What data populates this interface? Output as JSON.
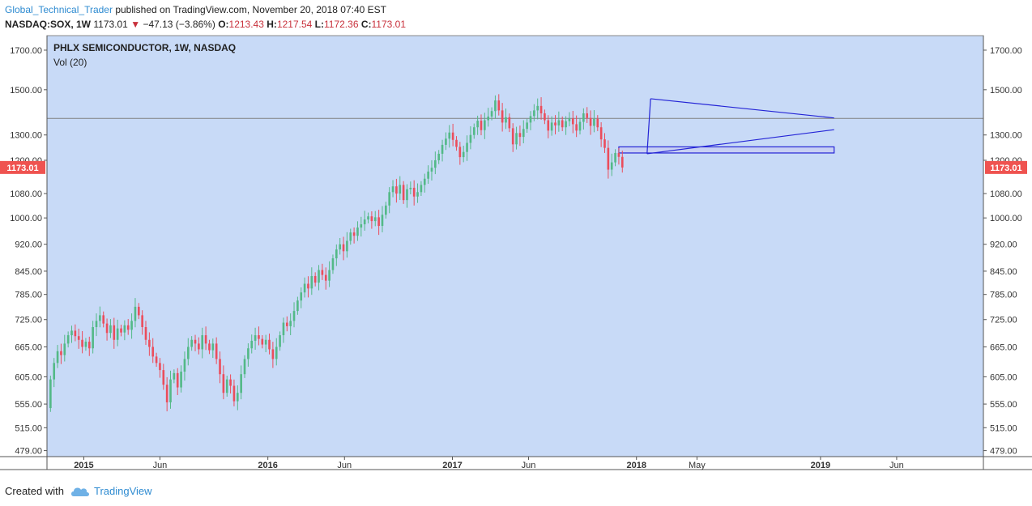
{
  "header": {
    "author": "Global_Technical_Trader",
    "published_text": "published on TradingView.com, November 20, 2018 07:40 EST",
    "symbol": "NASDAQ:SOX, 1W",
    "last": "1173.01",
    "change": "−47.13 (−3.86%)",
    "open_label": "O:",
    "open": "1213.43",
    "high_label": "H:",
    "high": "1217.54",
    "low_label": "L:",
    "low": "1172.36",
    "close_label": "C:",
    "close": "1173.01"
  },
  "footer": {
    "created_with": "Created with",
    "brand": "TradingView"
  },
  "colors": {
    "plot_bg": "#c8daf7",
    "up": "#53b987",
    "down": "#eb4d5c",
    "drawing": "#2424d6",
    "price_tag": "#ef5350",
    "hline": "#808080"
  },
  "chart_data": {
    "type": "candlestick",
    "title": "PHLX SEMICONDUCTOR, 1W, NASDAQ",
    "subtitle": "Vol (20)",
    "y_ticks": [
      1700,
      1500,
      1300,
      1200,
      1080,
      1000,
      920,
      845,
      785,
      725,
      665,
      605,
      555,
      515,
      479
    ],
    "y_tick_labels": [
      "1700.00",
      "1500.00",
      "1300.00",
      "1200.00",
      "1080.00",
      "1000.00",
      "920.00",
      "845.00",
      "785.00",
      "725.00",
      "665.00",
      "605.00",
      "555.00",
      "515.00",
      "479.00"
    ],
    "y_scale": "log",
    "ylim": [
      470,
      1780
    ],
    "x_ticks": [
      {
        "date": "2015-01-01",
        "label": "2015",
        "bold": true
      },
      {
        "date": "2015-06-01",
        "label": "Jun",
        "bold": false
      },
      {
        "date": "2016-01-01",
        "label": "2016",
        "bold": true
      },
      {
        "date": "2016-06-01",
        "label": "Jun",
        "bold": false
      },
      {
        "date": "2017-01-01",
        "label": "2017",
        "bold": true
      },
      {
        "date": "2017-06-01",
        "label": "Jun",
        "bold": false
      },
      {
        "date": "2018-01-01",
        "label": "2018",
        "bold": true
      },
      {
        "date": "2018-05-01",
        "label": "May",
        "bold": false
      },
      {
        "date": "2019-01-01",
        "label": "2019",
        "bold": true
      },
      {
        "date": "2019-06-01",
        "label": "Jun",
        "bold": false
      }
    ],
    "xlim": [
      "2014-10-20",
      "2019-11-20"
    ],
    "current_price_label": "1173.01",
    "current_price": 1173.01,
    "grid": false,
    "series": [
      {
        "start": "2014-10-27",
        "points": [
          [
            548,
            600
          ],
          [
            600,
            632
          ],
          [
            632,
            656
          ],
          [
            656,
            648
          ],
          [
            648,
            672
          ],
          [
            672,
            690
          ],
          [
            690,
            700
          ],
          [
            700,
            688
          ],
          [
            688,
            680
          ],
          [
            680,
            665
          ],
          [
            665,
            676
          ],
          [
            676,
            662
          ],
          [
            662,
            708
          ],
          [
            708,
            722
          ],
          [
            722,
            735
          ],
          [
            735,
            716
          ],
          [
            716,
            695
          ],
          [
            695,
            712
          ],
          [
            712,
            680
          ],
          [
            680,
            705
          ],
          [
            705,
            696
          ],
          [
            696,
            712
          ],
          [
            712,
            702
          ],
          [
            702,
            722
          ],
          [
            722,
            755
          ],
          [
            755,
            735
          ],
          [
            735,
            708
          ],
          [
            708,
            680
          ],
          [
            680,
            665
          ],
          [
            665,
            645
          ],
          [
            645,
            632
          ],
          [
            632,
            618
          ],
          [
            618,
            590
          ],
          [
            590,
            558
          ],
          [
            558,
            600
          ],
          [
            600,
            612
          ],
          [
            612,
            585
          ],
          [
            585,
            615
          ],
          [
            615,
            640
          ],
          [
            640,
            665
          ],
          [
            665,
            680
          ],
          [
            680,
            672
          ],
          [
            672,
            660
          ],
          [
            660,
            690
          ],
          [
            690,
            672
          ],
          [
            672,
            658
          ],
          [
            658,
            672
          ],
          [
            672,
            640
          ],
          [
            640,
            610
          ],
          [
            610,
            575
          ],
          [
            575,
            600
          ],
          [
            600,
            588
          ],
          [
            588,
            560
          ],
          [
            560,
            575
          ],
          [
            575,
            610
          ],
          [
            610,
            640
          ],
          [
            640,
            662
          ],
          [
            662,
            678
          ],
          [
            678,
            690
          ],
          [
            690,
            682
          ],
          [
            682,
            670
          ],
          [
            670,
            680
          ],
          [
            680,
            660
          ],
          [
            660,
            640
          ],
          [
            640,
            665
          ],
          [
            665,
            690
          ],
          [
            690,
            718
          ],
          [
            718,
            710
          ],
          [
            710,
            722
          ],
          [
            722,
            745
          ],
          [
            745,
            770
          ],
          [
            770,
            790
          ],
          [
            790,
            812
          ],
          [
            812,
            800
          ],
          [
            800,
            832
          ],
          [
            832,
            815
          ],
          [
            815,
            848
          ],
          [
            848,
            835
          ],
          [
            835,
            820
          ],
          [
            820,
            848
          ],
          [
            848,
            880
          ],
          [
            880,
            905
          ],
          [
            905,
            920
          ],
          [
            920,
            900
          ],
          [
            900,
            930
          ],
          [
            930,
            955
          ],
          [
            955,
            945
          ],
          [
            945,
            970
          ],
          [
            970,
            980
          ],
          [
            980,
            995
          ],
          [
            995,
            1005
          ],
          [
            1005,
            990
          ],
          [
            990,
            1002
          ],
          [
            1002,
            975
          ],
          [
            975,
            1010
          ],
          [
            1010,
            1040
          ],
          [
            1040,
            1085
          ],
          [
            1085,
            1105
          ],
          [
            1105,
            1080
          ],
          [
            1080,
            1110
          ],
          [
            1110,
            1058
          ],
          [
            1058,
            1095
          ],
          [
            1095,
            1100
          ],
          [
            1100,
            1070
          ],
          [
            1070,
            1085
          ],
          [
            1085,
            1110
          ],
          [
            1110,
            1132
          ],
          [
            1132,
            1158
          ],
          [
            1158,
            1172
          ],
          [
            1172,
            1200
          ],
          [
            1200,
            1225
          ],
          [
            1225,
            1260
          ],
          [
            1260,
            1285
          ],
          [
            1285,
            1310
          ],
          [
            1310,
            1280
          ],
          [
            1280,
            1252
          ],
          [
            1252,
            1212
          ],
          [
            1212,
            1232
          ],
          [
            1232,
            1268
          ],
          [
            1268,
            1300
          ],
          [
            1300,
            1332
          ],
          [
            1332,
            1360
          ],
          [
            1360,
            1320
          ],
          [
            1320,
            1362
          ],
          [
            1362,
            1378
          ],
          [
            1378,
            1402
          ],
          [
            1402,
            1450
          ],
          [
            1450,
            1405
          ],
          [
            1405,
            1352
          ],
          [
            1352,
            1375
          ],
          [
            1375,
            1328
          ],
          [
            1328,
            1262
          ],
          [
            1262,
            1308
          ],
          [
            1308,
            1292
          ],
          [
            1292,
            1325
          ],
          [
            1325,
            1352
          ],
          [
            1352,
            1380
          ],
          [
            1380,
            1405
          ],
          [
            1405,
            1425
          ],
          [
            1425,
            1392
          ],
          [
            1392,
            1362
          ],
          [
            1362,
            1318
          ],
          [
            1318,
            1352
          ],
          [
            1352,
            1340
          ],
          [
            1340,
            1362
          ],
          [
            1362,
            1332
          ],
          [
            1332,
            1358
          ],
          [
            1358,
            1370
          ],
          [
            1370,
            1345
          ],
          [
            1345,
            1318
          ],
          [
            1318,
            1355
          ],
          [
            1355,
            1392
          ],
          [
            1392,
            1372
          ],
          [
            1372,
            1338
          ],
          [
            1338,
            1368
          ],
          [
            1368,
            1332
          ],
          [
            1332,
            1282
          ],
          [
            1282,
            1248
          ],
          [
            1248,
            1165
          ],
          [
            1165,
            1192
          ],
          [
            1192,
            1228
          ],
          [
            1228,
            1213
          ],
          [
            1213,
            1173
          ]
        ]
      }
    ],
    "annotations": {
      "horizontal_line_price": 1370,
      "triangle_top": [
        [
          "2018-01-29",
          1458
        ],
        [
          "2019-01-28",
          1372
        ]
      ],
      "triangle_bottom": [
        [
          "2018-01-22",
          1225
        ],
        [
          "2019-01-28",
          1322
        ]
      ],
      "support_zone": {
        "from": "2017-11-27",
        "to": "2019-01-28",
        "top": 1252,
        "bottom": 1228
      }
    }
  }
}
